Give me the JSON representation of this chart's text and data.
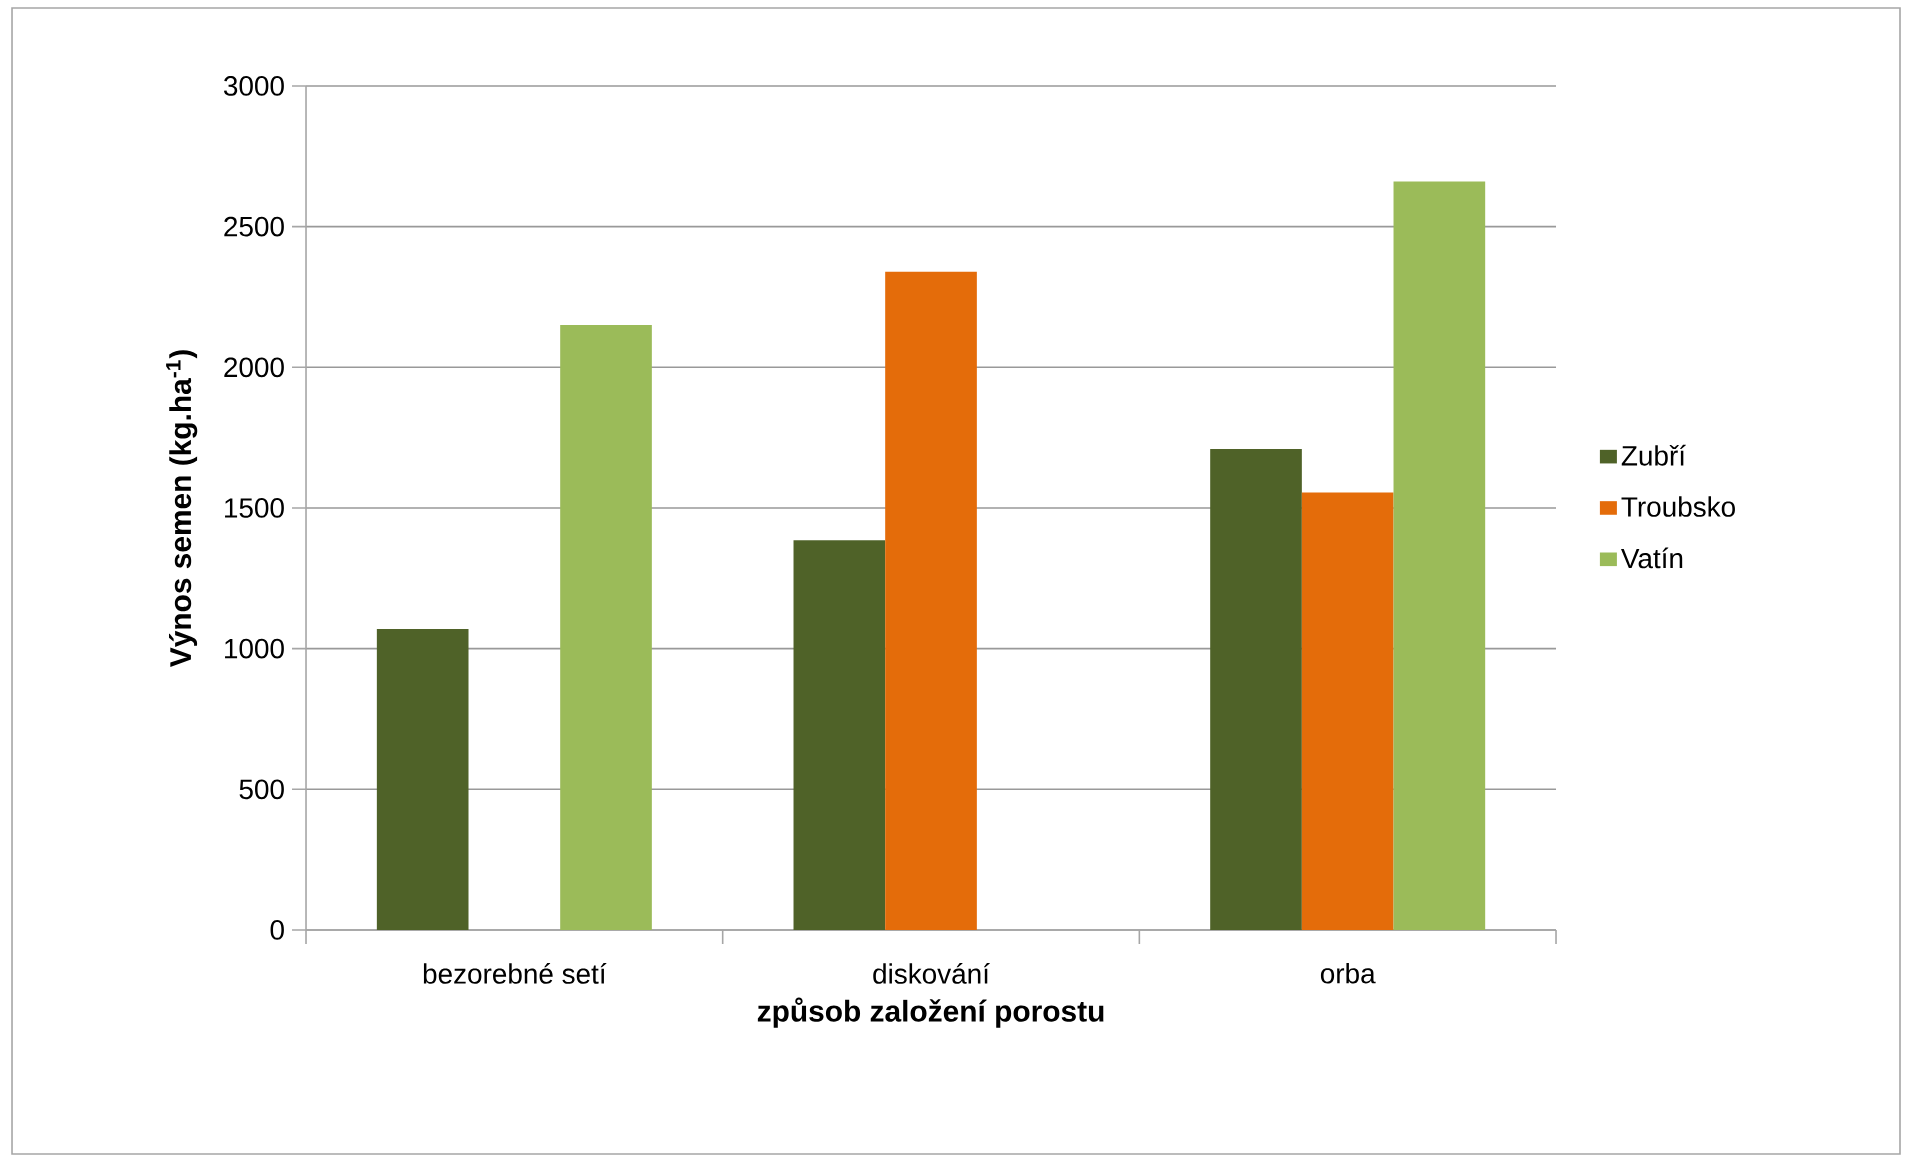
{
  "chart_data": {
    "type": "bar",
    "xlabel": "způsob založení porostu",
    "ylabel": "**Výnos semen (kg.ha$^{-1}$)**",
    "categories": [
      "bezorebné setí",
      "diskování",
      "orba"
    ],
    "series": [
      {
        "name": "Zubří",
        "color": "#4f6228",
        "values": [
          1070,
          1385,
          1710
        ]
      },
      {
        "name": "Troubsko",
        "color": "#e46c0a",
        "values": [
          null,
          2340,
          1555
        ]
      },
      {
        "name": "Vatín",
        "color": "#9bbb59",
        "values": [
          2150,
          null,
          2660
        ]
      }
    ],
    "ylim": [
      0,
      3000
    ],
    "yticks": [
      0,
      500,
      1000,
      1500,
      2000,
      2500,
      3000
    ],
    "grid": "y",
    "legend": "right"
  }
}
